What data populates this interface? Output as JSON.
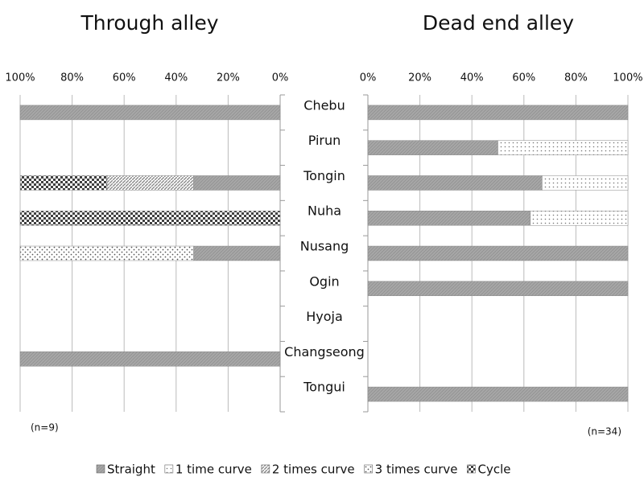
{
  "chart_data": [
    {
      "type": "bar",
      "title": "Through alley",
      "note": "(n=9)",
      "categories": [
        "Chebu",
        "Pirun",
        "Tongin",
        "Nuha",
        "Nusang",
        "Ogin",
        "Hyoja",
        "Changseong",
        "Tongui"
      ],
      "xlim": [
        100,
        0
      ],
      "xticks": [
        {
          "value": 100,
          "label": "100%"
        },
        {
          "value": 80,
          "label": "80%"
        },
        {
          "value": 60,
          "label": "60%"
        },
        {
          "value": 40,
          "label": "40%"
        },
        {
          "value": 20,
          "label": "20%"
        },
        {
          "value": 0,
          "label": "0%"
        }
      ],
      "grid": true,
      "series": [
        {
          "name": "Straight",
          "color": "#a6a6a6",
          "values": [
            100,
            0,
            33.3,
            0,
            33.3,
            0,
            0,
            100,
            0
          ]
        },
        {
          "name": "1 time curve",
          "color": "#d9d9d9",
          "values": [
            0,
            0,
            0,
            0,
            0,
            0,
            0,
            0,
            0
          ]
        },
        {
          "name": "2 times curve",
          "color": "#8c8c8c",
          "values": [
            0,
            0,
            33.3,
            0,
            0,
            0,
            0,
            0,
            0
          ]
        },
        {
          "name": "3 times curve",
          "color": "#bfbfbf",
          "values": [
            0,
            0,
            0,
            0,
            66.7,
            0,
            0,
            0,
            0
          ]
        },
        {
          "name": "Cycle",
          "color": "#404040",
          "values": [
            0,
            0,
            33.3,
            100,
            0,
            0,
            0,
            0,
            0
          ]
        }
      ]
    },
    {
      "type": "bar",
      "title": "Dead end alley",
      "note": "(n=34)",
      "xlim": [
        0,
        100
      ],
      "xticks": [
        {
          "value": 0,
          "label": "0%"
        },
        {
          "value": 20,
          "label": "20%"
        },
        {
          "value": 40,
          "label": "40%"
        },
        {
          "value": 60,
          "label": "60%"
        },
        {
          "value": 80,
          "label": "80%"
        },
        {
          "value": 100,
          "label": "100%"
        }
      ],
      "grid": true,
      "series": [
        {
          "color": "#a6a6a6",
          "values": [
            100,
            50,
            67,
            62.5,
            100,
            100,
            0,
            0,
            100
          ]
        },
        {
          "color": "#d9d9d9",
          "values": [
            0,
            50,
            33,
            37.5,
            0,
            0,
            0,
            0,
            0
          ]
        },
        {
          "color": "#8c8c8c",
          "values": [
            0,
            0,
            0,
            0,
            0,
            0,
            0,
            0,
            0
          ]
        },
        {
          "color": "#bfbfbf",
          "values": [
            0,
            0,
            0,
            0,
            0,
            0,
            0,
            0,
            0
          ]
        },
        {
          "color": "#404040",
          "values": [
            0,
            0,
            0,
            0,
            0,
            0,
            0,
            0,
            0
          ]
        }
      ]
    }
  ]
}
